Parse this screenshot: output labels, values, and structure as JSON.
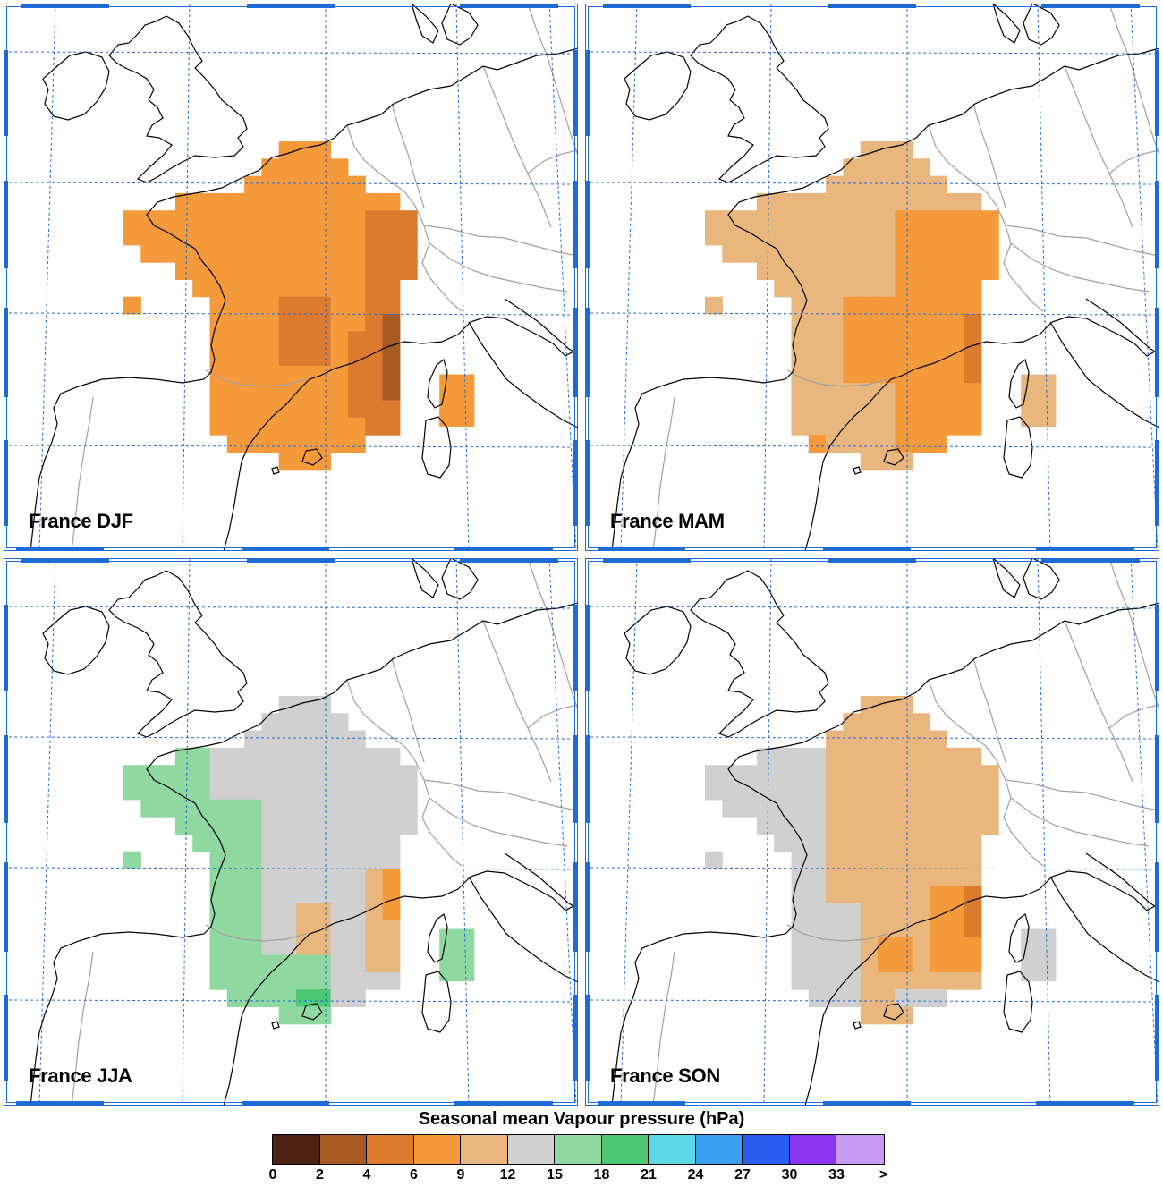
{
  "panels": [
    {
      "title": "France DJF",
      "season": "DJF"
    },
    {
      "title": "France MAM",
      "season": "MAM"
    },
    {
      "title": "France JJA",
      "season": "JJA"
    },
    {
      "title": "France SON",
      "season": "SON"
    }
  ],
  "legend": {
    "title": "Seasonal mean Vapour pressure (hPa)",
    "ticks": [
      "0",
      "2",
      "4",
      "6",
      "9",
      "12",
      "15",
      "18",
      "21",
      "24",
      "27",
      "30",
      "33",
      ">"
    ],
    "colors": [
      "#4a2410",
      "#a85a22",
      "#dc7a2e",
      "#f59a3a",
      "#e9b67e",
      "#d0d0d0",
      "#8fd8a0",
      "#4ec874",
      "#5cd8e6",
      "#3ba0f2",
      "#2a5ef0",
      "#8a36f0",
      "#c89af2"
    ]
  },
  "colors": {
    "grid": "#1e6bd6",
    "frame": "#1e6bd6",
    "coast": "#000000",
    "border": "#a0a0a0"
  }
}
